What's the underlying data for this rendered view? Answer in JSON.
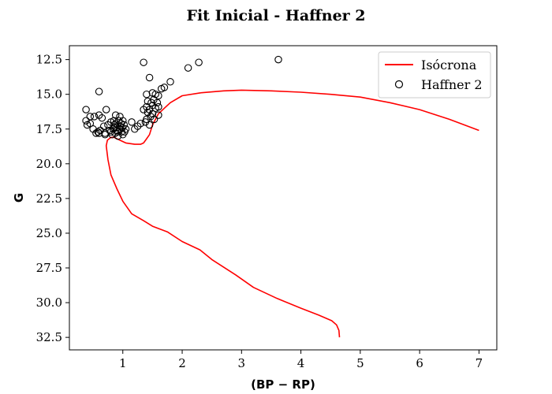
{
  "chart_data": {
    "type": "scatter",
    "title": "Fit Inicial - Haffner 2",
    "xlabel": "(BP − RP)",
    "ylabel": "G",
    "xlim": [
      0.1,
      7.3
    ],
    "ylim": [
      33.4,
      11.5
    ],
    "y_inverted": true,
    "xticks": [
      1,
      2,
      3,
      4,
      5,
      6,
      7
    ],
    "xtick_labels": [
      "1",
      "2",
      "3",
      "4",
      "5",
      "6",
      "7"
    ],
    "yticks": [
      12.5,
      15.0,
      17.5,
      20.0,
      22.5,
      25.0,
      27.5,
      30.0,
      32.5
    ],
    "ytick_labels": [
      "12.5",
      "15.0",
      "17.5",
      "20.0",
      "22.5",
      "25.0",
      "27.5",
      "30.0",
      "32.5"
    ],
    "grid": false,
    "legend_position": "top-right",
    "colors": {
      "isochrone": "#ff0000",
      "points_edge": "#000000"
    },
    "series": [
      {
        "name": "Isócrona",
        "kind": "line",
        "x": [
          4.65,
          4.64,
          4.6,
          4.52,
          4.3,
          4.0,
          3.6,
          3.2,
          2.9,
          2.5,
          2.3,
          2.0,
          1.75,
          1.5,
          1.35,
          1.15,
          1.0,
          0.9,
          0.8,
          0.75,
          0.72,
          0.74,
          0.8,
          0.85,
          0.95,
          1.05,
          1.2,
          1.3,
          1.35,
          1.4,
          1.45,
          1.5,
          1.6,
          1.7,
          1.8,
          2.0,
          2.3,
          2.7,
          3.0,
          3.5,
          4.0,
          4.5,
          5.0,
          5.5,
          6.0,
          6.5,
          7.0
        ],
        "y": [
          32.5,
          32.0,
          31.6,
          31.3,
          30.9,
          30.4,
          29.7,
          28.9,
          28.0,
          26.9,
          26.2,
          25.6,
          24.9,
          24.5,
          24.1,
          23.6,
          22.7,
          21.8,
          20.8,
          19.7,
          18.7,
          18.3,
          18.1,
          18.1,
          18.3,
          18.5,
          18.6,
          18.6,
          18.5,
          18.2,
          17.9,
          17.2,
          16.4,
          16.0,
          15.6,
          15.1,
          14.9,
          14.75,
          14.7,
          14.75,
          14.85,
          15.0,
          15.2,
          15.6,
          16.1,
          16.8,
          17.6
        ]
      },
      {
        "name": "Haffner 2",
        "kind": "scatter",
        "points": [
          [
            1.35,
            12.7
          ],
          [
            2.28,
            12.7
          ],
          [
            3.62,
            12.5
          ],
          [
            2.1,
            13.1
          ],
          [
            1.45,
            13.8
          ],
          [
            1.8,
            14.1
          ],
          [
            0.6,
            14.8
          ],
          [
            1.7,
            14.5
          ],
          [
            1.65,
            14.6
          ],
          [
            1.4,
            15.0
          ],
          [
            1.5,
            14.9
          ],
          [
            1.6,
            15.1
          ],
          [
            1.55,
            15.0
          ],
          [
            1.42,
            15.5
          ],
          [
            1.48,
            15.6
          ],
          [
            1.52,
            15.4
          ],
          [
            1.58,
            15.6
          ],
          [
            1.4,
            15.9
          ],
          [
            1.45,
            16.1
          ],
          [
            1.5,
            15.8
          ],
          [
            1.55,
            16.0
          ],
          [
            1.6,
            15.9
          ],
          [
            1.35,
            16.1
          ],
          [
            1.42,
            16.3
          ],
          [
            1.5,
            16.4
          ],
          [
            1.47,
            16.6
          ],
          [
            1.53,
            16.8
          ],
          [
            1.38,
            17.0
          ],
          [
            1.45,
            17.2
          ],
          [
            1.6,
            16.5
          ],
          [
            1.4,
            16.8
          ],
          [
            0.38,
            16.1
          ],
          [
            0.45,
            16.6
          ],
          [
            0.52,
            16.6
          ],
          [
            0.6,
            16.5
          ],
          [
            0.65,
            16.7
          ],
          [
            0.72,
            16.1
          ],
          [
            0.38,
            16.9
          ],
          [
            0.4,
            17.2
          ],
          [
            0.45,
            17.1
          ],
          [
            0.5,
            17.5
          ],
          [
            0.58,
            17.7
          ],
          [
            0.62,
            17.6
          ],
          [
            0.7,
            17.8
          ],
          [
            0.68,
            17.3
          ],
          [
            0.75,
            17.2
          ],
          [
            0.78,
            17.6
          ],
          [
            0.82,
            17.9
          ],
          [
            0.85,
            17.4
          ],
          [
            0.88,
            17.1
          ],
          [
            0.9,
            17.6
          ],
          [
            0.92,
            18.0
          ],
          [
            0.95,
            17.3
          ],
          [
            0.98,
            17.7
          ],
          [
            1.0,
            17.9
          ],
          [
            1.02,
            17.2
          ],
          [
            1.05,
            17.5
          ],
          [
            0.88,
            16.5
          ],
          [
            0.95,
            16.6
          ],
          [
            0.85,
            16.9
          ],
          [
            0.8,
            17.0
          ],
          [
            0.93,
            16.9
          ],
          [
            1.0,
            16.9
          ],
          [
            0.9,
            17.4
          ],
          [
            0.96,
            17.5
          ],
          [
            0.84,
            17.5
          ],
          [
            1.15,
            17.0
          ],
          [
            1.2,
            17.5
          ],
          [
            1.25,
            17.3
          ],
          [
            1.3,
            17.1
          ],
          [
            0.6,
            17.8
          ],
          [
            0.55,
            17.8
          ],
          [
            0.7,
            17.9
          ],
          [
            0.8,
            17.7
          ],
          [
            0.87,
            17.8
          ],
          [
            0.92,
            17.7
          ],
          [
            0.99,
            17.4
          ],
          [
            1.03,
            17.7
          ],
          [
            0.86,
            17.2
          ],
          [
            0.97,
            17.1
          ]
        ]
      }
    ]
  }
}
